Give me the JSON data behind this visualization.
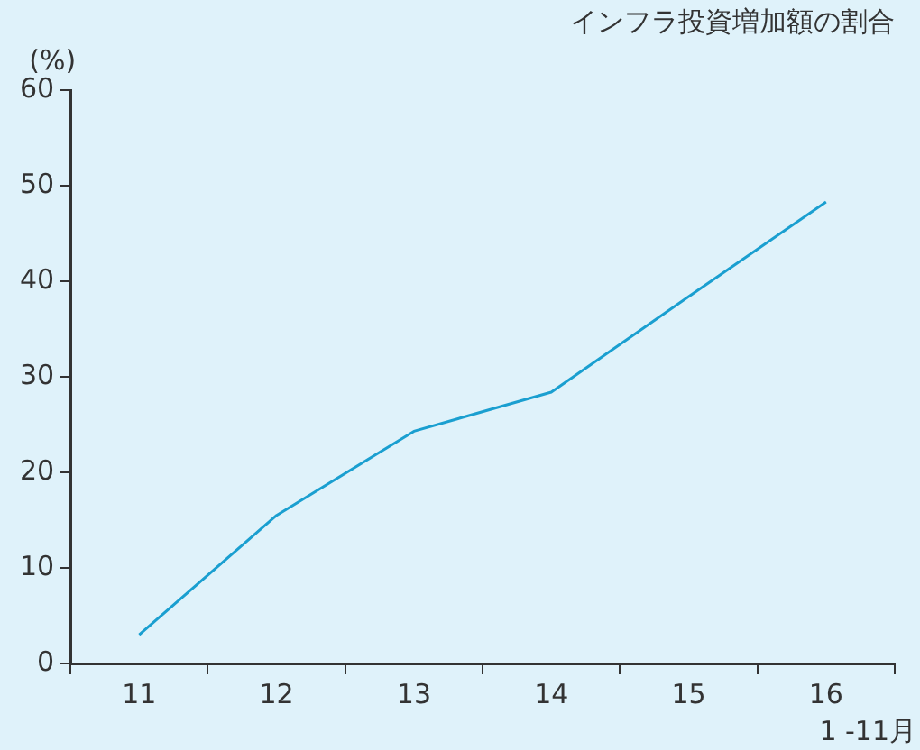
{
  "chart_data": {
    "type": "line",
    "title": "インフラ投資増加額の割合",
    "ylabel": "(%)",
    "categories": [
      "11",
      "12",
      "13",
      "14",
      "15",
      "16"
    ],
    "series": [
      {
        "color": "#1a9fd0",
        "values": [
          3,
          15.5,
          24.3,
          28.4,
          38.4,
          48.3
        ]
      }
    ],
    "ylim": [
      0,
      60
    ],
    "yticks": [
      0,
      10,
      20,
      30,
      40,
      50,
      60
    ],
    "grid": false,
    "legend": false,
    "marker": "none",
    "line_style": "solid",
    "annotations": [
      "1 -11月"
    ]
  }
}
